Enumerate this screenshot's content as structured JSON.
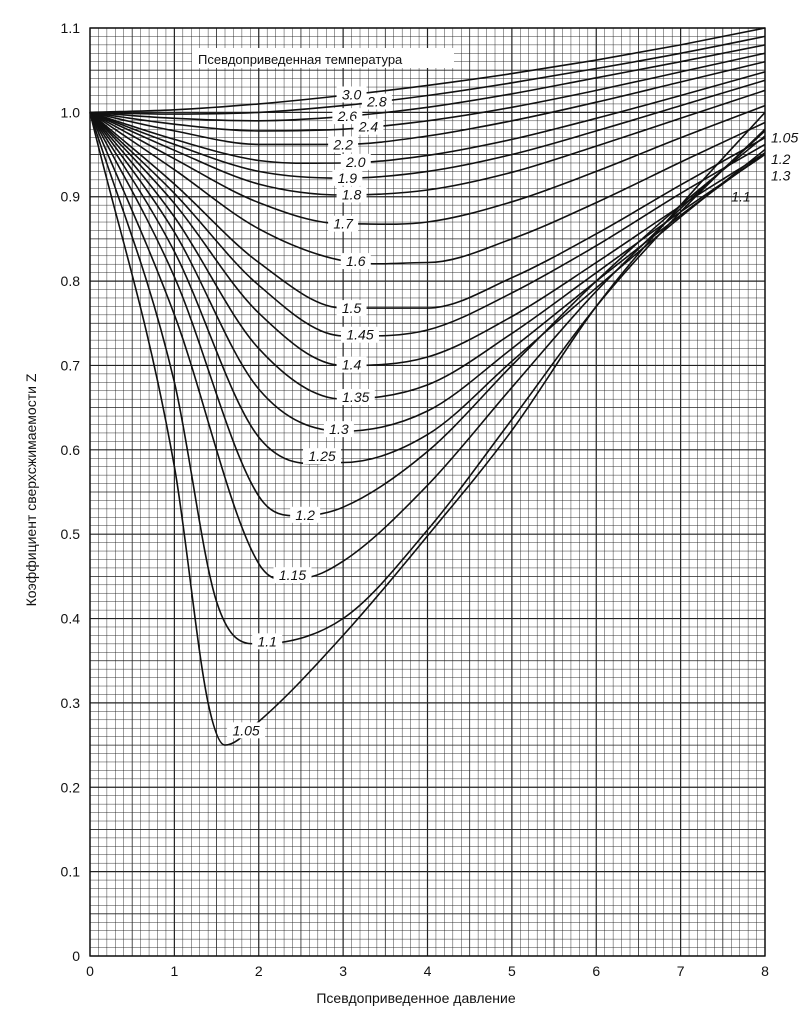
{
  "chart_data": {
    "type": "line",
    "xlabel": "Псевдоприведенное давление",
    "ylabel": "Коэффициент сверхсжимаемости Z",
    "legend_title": "Псевдоприведенная температура",
    "xlim": [
      0,
      8
    ],
    "ylim": [
      0,
      1.1
    ],
    "x_ticks": [
      "0",
      "1",
      "2",
      "3",
      "4",
      "5",
      "6",
      "7",
      "8"
    ],
    "y_ticks": [
      "0",
      "0.1",
      "0.2",
      "0.3",
      "0.4",
      "0.5",
      "0.6",
      "0.7",
      "0.8",
      "0.9",
      "1.0",
      "1.1"
    ],
    "grid": true,
    "series": [
      {
        "name": "3.0",
        "x": [
          0,
          1,
          2,
          3,
          4,
          5,
          6,
          7,
          8
        ],
        "y": [
          1.0,
          1.003,
          1.01,
          1.02,
          1.032,
          1.046,
          1.062,
          1.08,
          1.1
        ]
      },
      {
        "name": "2.8",
        "x": [
          0,
          1,
          2,
          3,
          4,
          5,
          6,
          7,
          8
        ],
        "y": [
          1.0,
          0.998,
          1.0,
          1.008,
          1.02,
          1.035,
          1.052,
          1.07,
          1.09
        ]
      },
      {
        "name": "2.6",
        "x": [
          0,
          1,
          2,
          3,
          4,
          5,
          6,
          7,
          8
        ],
        "y": [
          1.0,
          0.993,
          0.99,
          0.995,
          1.006,
          1.022,
          1.041,
          1.06,
          1.08
        ]
      },
      {
        "name": "2.4",
        "x": [
          0,
          1,
          2,
          3,
          4,
          5,
          6,
          7,
          8
        ],
        "y": [
          1.0,
          0.986,
          0.978,
          0.98,
          0.99,
          1.006,
          1.026,
          1.048,
          1.07
        ]
      },
      {
        "name": "2.2",
        "x": [
          0,
          1,
          2,
          3,
          4,
          5,
          6,
          7,
          8
        ],
        "y": [
          1.0,
          0.978,
          0.962,
          0.962,
          0.972,
          0.99,
          1.012,
          1.036,
          1.06
        ]
      },
      {
        "name": "2.0",
        "x": [
          0,
          1,
          2,
          3,
          4,
          5,
          6,
          7,
          8
        ],
        "y": [
          1.0,
          0.968,
          0.943,
          0.94,
          0.949,
          0.968,
          0.993,
          1.02,
          1.048
        ]
      },
      {
        "name": "1.9",
        "x": [
          0,
          1,
          2,
          3,
          4,
          5,
          6,
          7,
          8
        ],
        "y": [
          1.0,
          0.962,
          0.93,
          0.922,
          0.93,
          0.95,
          0.978,
          1.008,
          1.038
        ]
      },
      {
        "name": "1.8",
        "x": [
          0,
          1,
          2,
          3,
          4,
          5,
          6,
          7,
          8
        ],
        "y": [
          1.0,
          0.955,
          0.915,
          0.902,
          0.908,
          0.929,
          0.96,
          0.993,
          1.026
        ]
      },
      {
        "name": "1.7",
        "x": [
          0,
          1,
          2,
          3,
          4,
          5,
          6,
          7,
          8
        ],
        "y": [
          1.0,
          0.945,
          0.893,
          0.868,
          0.87,
          0.894,
          0.93,
          0.97,
          1.008
        ]
      },
      {
        "name": "1.6",
        "x": [
          0,
          1,
          2,
          3,
          4,
          5,
          6,
          7,
          8
        ],
        "y": [
          1.0,
          0.932,
          0.862,
          0.824,
          0.822,
          0.85,
          0.893,
          0.941,
          0.988
        ]
      },
      {
        "name": "1.5",
        "x": [
          0,
          1,
          2,
          3,
          4,
          5,
          6,
          7,
          8
        ],
        "y": [
          1.0,
          0.915,
          0.822,
          0.768,
          0.768,
          0.804,
          0.856,
          0.914,
          0.97
        ]
      },
      {
        "name": "1.45",
        "x": [
          0,
          1,
          2,
          3,
          4,
          5,
          6,
          7,
          8
        ],
        "y": [
          1.0,
          0.904,
          0.795,
          0.735,
          0.742,
          0.786,
          0.842,
          0.904,
          0.962
        ]
      },
      {
        "name": "1.4",
        "x": [
          0,
          1,
          2,
          3,
          4,
          5,
          6,
          7,
          8
        ],
        "y": [
          1.0,
          0.892,
          0.762,
          0.7,
          0.71,
          0.758,
          0.822,
          0.889,
          0.952
        ]
      },
      {
        "name": "1.35",
        "x": [
          0,
          1,
          2,
          3,
          4,
          5,
          6,
          7,
          8
        ],
        "y": [
          1.0,
          0.876,
          0.72,
          0.66,
          0.677,
          0.738,
          0.81,
          0.882,
          0.95
        ]
      },
      {
        "name": "1.3",
        "x": [
          0,
          1,
          2,
          3,
          4,
          5,
          6,
          7,
          8
        ],
        "y": [
          1.0,
          0.858,
          0.672,
          0.622,
          0.646,
          0.72,
          0.8,
          0.878,
          0.952
        ]
      },
      {
        "name": "1.25",
        "x": [
          0,
          1,
          2,
          3,
          4,
          5,
          6,
          7,
          8
        ],
        "y": [
          1.0,
          0.835,
          0.615,
          0.585,
          0.618,
          0.705,
          0.792,
          0.876,
          0.956
        ]
      },
      {
        "name": "1.2",
        "x": [
          0,
          1,
          2,
          2.5,
          3,
          4,
          5,
          6,
          7,
          8
        ],
        "y": [
          1.0,
          0.805,
          0.545,
          0.522,
          0.532,
          0.598,
          0.7,
          0.8,
          0.89,
          0.972
        ]
      },
      {
        "name": "1.15",
        "x": [
          0,
          1,
          2,
          2.5,
          3,
          4,
          5,
          6,
          7,
          8
        ],
        "y": [
          1.0,
          0.76,
          0.465,
          0.448,
          0.468,
          0.558,
          0.674,
          0.788,
          0.886,
          0.978
        ]
      },
      {
        "name": "1.1",
        "x": [
          0,
          1,
          1.5,
          2,
          3,
          4,
          5,
          6,
          7,
          8
        ],
        "y": [
          1.0,
          0.68,
          0.42,
          0.37,
          0.4,
          0.505,
          0.636,
          0.77,
          0.882,
          0.98
        ]
      },
      {
        "name": "1.05",
        "x": [
          0,
          1,
          1.4,
          1.6,
          2,
          3,
          4,
          5,
          6,
          7,
          8
        ],
        "y": [
          1.0,
          0.58,
          0.3,
          0.25,
          0.278,
          0.38,
          0.498,
          0.623,
          0.77,
          0.89,
          1.0
        ]
      }
    ]
  }
}
